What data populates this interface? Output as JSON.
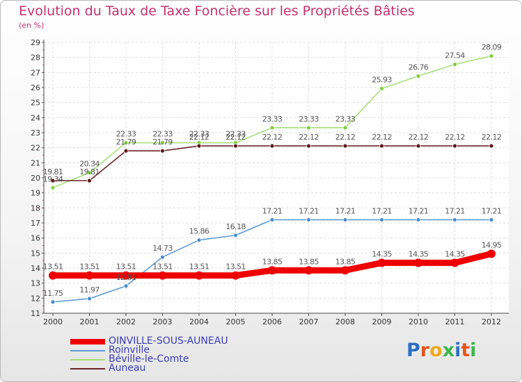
{
  "title": "Evolution du Taux de Taxe Foncière sur les Propriétés Bâties",
  "unit": "(en %)",
  "logo": {
    "text": "Proxiti",
    "colors": [
      "#2c6fc2",
      "#e8541b",
      "#f0a81b",
      "#3cb54a",
      "#2c6fc2",
      "#e8541b",
      "#3cb54a"
    ]
  },
  "chart_data": {
    "type": "line",
    "title": "Evolution du Taux de Taxe Foncière sur les Propriétés Bâties",
    "ylabel": "(en %)",
    "xlabel": "",
    "ylim": [
      11,
      29
    ],
    "yticks": [
      11,
      12,
      13,
      14,
      15,
      16,
      17,
      18,
      19,
      20,
      21,
      22,
      23,
      24,
      25,
      26,
      27,
      28,
      29
    ],
    "categories": [
      "2000",
      "2001",
      "2002",
      "2003",
      "2004",
      "2005",
      "2006",
      "2007",
      "2008",
      "2009",
      "2010",
      "2011",
      "2012"
    ],
    "series": [
      {
        "name": "OINVILLE-SOUS-AUNEAU",
        "color": "#ee0000",
        "marker": "#ee0000",
        "values": [
          13.51,
          13.51,
          13.51,
          13.51,
          13.51,
          13.51,
          13.85,
          13.85,
          13.85,
          14.35,
          14.35,
          14.35,
          14.95
        ],
        "labels": [
          "13.51",
          "13.51",
          "13.51",
          "13.51",
          "13.51",
          "13.51",
          "13.85",
          "13.85",
          "13.85",
          "14.35",
          "14.35",
          "14.35",
          "14.95"
        ]
      },
      {
        "name": "Roinville",
        "color": "#5b9bd5",
        "marker": "#4a8ccf",
        "values": [
          11.75,
          11.97,
          12.81,
          14.73,
          15.86,
          16.18,
          17.21,
          17.21,
          17.21,
          17.21,
          17.21,
          17.21,
          17.21
        ],
        "labels": [
          "11.75",
          "11.97",
          "12.81",
          "14.73",
          "15.86",
          "16.18",
          "17.21",
          "17.21",
          "17.21",
          "17.21",
          "17.21",
          "17.21",
          "17.21"
        ]
      },
      {
        "name": "Béville-le-Comte",
        "color": "#a6e07a",
        "marker": "#7ccf3a",
        "values": [
          19.34,
          20.34,
          22.33,
          22.33,
          22.33,
          22.33,
          23.33,
          23.33,
          23.33,
          25.93,
          26.76,
          27.54,
          28.09
        ],
        "labels": [
          "19.34",
          "20.34",
          "22.33",
          "22.33",
          "22.33",
          "22.33",
          "23.33",
          "23.33",
          "23.33",
          "25.93",
          "26.76",
          "27.54",
          "28.09"
        ]
      },
      {
        "name": "Auneau",
        "color": "#6b2424",
        "marker": "#5a1818",
        "values": [
          19.81,
          19.81,
          21.79,
          21.79,
          22.12,
          22.12,
          22.12,
          22.12,
          22.12,
          22.12,
          22.12,
          22.12,
          22.12
        ],
        "labels": [
          "19.81",
          "19.81",
          "21.79",
          "21.79",
          "22.12",
          "22.12",
          "22.12",
          "22.12",
          "22.12",
          "22.12",
          "22.12",
          "22.12",
          "22.12"
        ]
      }
    ],
    "grid": true,
    "legend_position": "bottom-left"
  }
}
